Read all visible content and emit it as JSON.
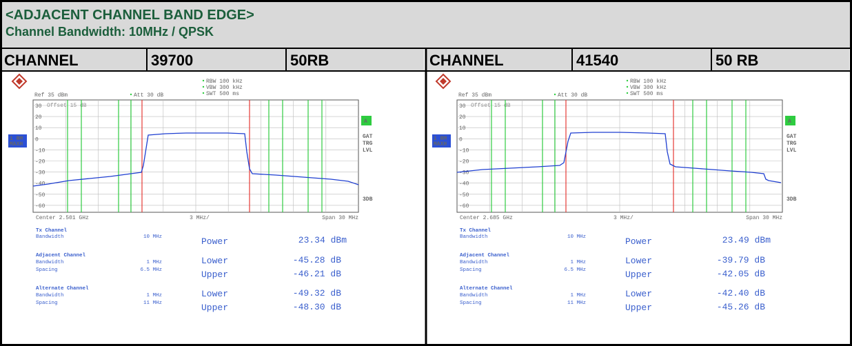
{
  "header": {
    "title": "<ADJACENT CHANNEL BAND EDGE>",
    "subtitle": "Channel Bandwidth: 10MHz / QPSK"
  },
  "panels": [
    {
      "channel_label": "CHANNEL",
      "channel": "39700",
      "rb": "50RB",
      "rbw": "RBW 100 kHz",
      "vbw": "VBW 300 kHz",
      "swt": "SWT 500 ms",
      "ref": "Ref  35 dBm",
      "att": "Att  30 dB",
      "offset": "Offset  15 dB",
      "y_labels": [
        "30",
        "20",
        "10",
        "0",
        "-10",
        "-20",
        "-30",
        "-40",
        "-50",
        "-60"
      ],
      "trace_box": [
        "1 RM",
        "MAXH"
      ],
      "side_box": "A",
      "side_labels": [
        "GAT",
        "TRG",
        "LVL"
      ],
      "side_bottom": "3DB",
      "center": "Center  2.501 GHz",
      "div": "3 MHz/",
      "span": "Span  30 MHz",
      "tx": {
        "title": "Tx Channel",
        "bw_label": "Bandwidth",
        "bw": "10 MHz",
        "power_label": "Power",
        "power": "23.34 dBm"
      },
      "adj": {
        "title": "Adjacent Channel",
        "bw_label": "Bandwidth",
        "bw": "1 MHz",
        "sp_label": "Spacing",
        "sp": "6.5 MHz",
        "lower_label": "Lower",
        "lower": "-45.28 dB",
        "upper_label": "Upper",
        "upper": "-46.21 dB"
      },
      "alt": {
        "title": "Alternate Channel",
        "bw_label": "Bandwidth",
        "bw": "1 MHz",
        "sp_label": "Spacing",
        "sp": "11 MHz",
        "lower_label": "Lower",
        "lower": "-49.32 dB",
        "upper_label": "Upper",
        "upper": "-48.30 dB"
      }
    },
    {
      "channel_label": "CHANNEL",
      "channel": "41540",
      "rb": "50 RB",
      "rbw": "RBW 100 kHz",
      "vbw": "VBW 300 kHz",
      "swt": "SWT 500 ms",
      "ref": "Ref  35 dBm",
      "att": "Att  30 dB",
      "offset": "Offset  15 dB",
      "y_labels": [
        "30",
        "20",
        "10",
        "0",
        "-10",
        "-20",
        "-30",
        "-40",
        "-50",
        "-60"
      ],
      "trace_box": [
        "1 RM",
        "MAXH"
      ],
      "side_box": "A",
      "side_labels": [
        "GAT",
        "TRG",
        "LVL"
      ],
      "side_bottom": "3DB",
      "center": "Center  2.685 GHz",
      "div": "3 MHz/",
      "span": "Span  30 MHz",
      "tx": {
        "title": "Tx Channel",
        "bw_label": "Bandwidth",
        "bw": "10 MHz",
        "power_label": "Power",
        "power": "23.49 dBm"
      },
      "adj": {
        "title": "Adjacent Channel",
        "bw_label": "Bandwidth",
        "bw": "1 MHz",
        "sp_label": "Spacing",
        "sp": "6.5 MHz",
        "lower_label": "Lower",
        "lower": "-39.79 dB",
        "upper_label": "Upper",
        "upper": "-42.05 dB"
      },
      "alt": {
        "title": "Alternate Channel",
        "bw_label": "Bandwidth",
        "bw": "1 MHz",
        "sp_label": "Spacing",
        "sp": "11 MHz",
        "lower_label": "Lower",
        "lower": "-42.40 dB",
        "upper_label": "Upper",
        "upper": "-45.26 dB"
      }
    }
  ]
}
